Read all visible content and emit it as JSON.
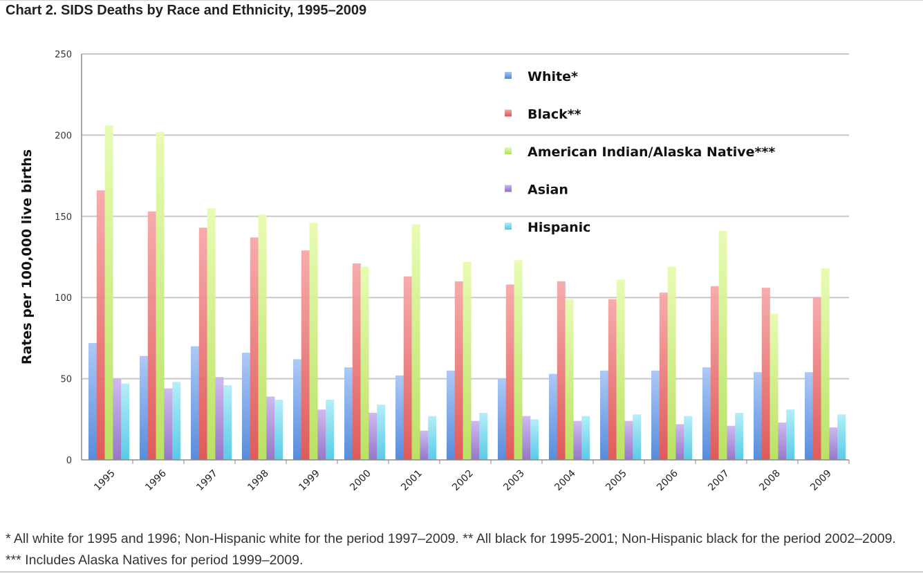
{
  "page": {
    "title": "Chart 2. SIDS Deaths by Race and Ethnicity, 1995–2009",
    "footnote": "* All white for 1995 and 1996; Non-Hispanic white for the period 1997–2009. ** All black for 1995-2001; Non-Hispanic black for the period 2002–2009. *** Includes Alaska Natives for period 1999–2009."
  },
  "chart_data": {
    "type": "bar",
    "title": "Chart 2. SIDS Deaths by Race and Ethnicity, 1995–2009",
    "xlabel": "",
    "ylabel": "Rates per 100,000 live births",
    "ylim": [
      0,
      250
    ],
    "yticks": [
      "0",
      "50",
      "100",
      "150",
      "200",
      "250"
    ],
    "grid": true,
    "legend_position": "top-right",
    "categories": [
      "1995",
      "1996",
      "1997",
      "1998",
      "1999",
      "2000",
      "2001",
      "2002",
      "2003",
      "2004",
      "2005",
      "2006",
      "2007",
      "2008",
      "2009"
    ],
    "series": [
      {
        "name": "White*",
        "color": "#6fa0e6",
        "values": [
          72,
          64,
          70,
          66,
          62,
          57,
          52,
          55,
          50,
          53,
          55,
          55,
          57,
          54,
          54
        ]
      },
      {
        "name": "Black**",
        "color": "#ea7a7a",
        "values": [
          166,
          153,
          143,
          137,
          129,
          121,
          113,
          110,
          108,
          110,
          99,
          103,
          107,
          106,
          100
        ]
      },
      {
        "name": "American Indian/Alaska Native***",
        "color": "#c8ec7c",
        "values": [
          206,
          202,
          155,
          151,
          146,
          119,
          145,
          122,
          123,
          99,
          111,
          119,
          141,
          90,
          118
        ]
      },
      {
        "name": "Asian",
        "color": "#a98ad8",
        "values": [
          50,
          44,
          51,
          39,
          31,
          29,
          18,
          24,
          27,
          24,
          24,
          22,
          21,
          23,
          20
        ]
      },
      {
        "name": "Hispanic",
        "color": "#7cd8ec",
        "values": [
          47,
          48,
          46,
          37,
          37,
          34,
          27,
          29,
          25,
          27,
          28,
          27,
          29,
          31,
          28
        ]
      }
    ]
  }
}
